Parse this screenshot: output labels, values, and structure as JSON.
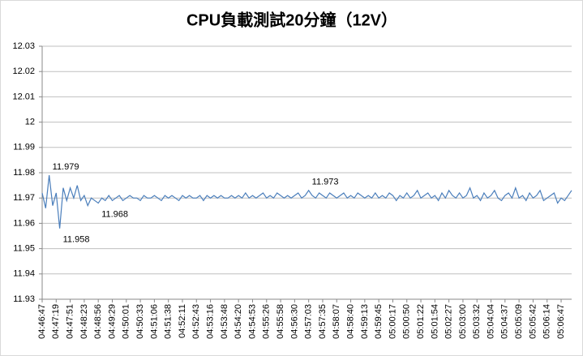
{
  "chart_data": {
    "type": "line",
    "title": "CPU負載測試20分鐘（12V）",
    "categories": [
      "04:46:47",
      null,
      null,
      null,
      "04:47:19",
      null,
      null,
      null,
      "04:47:51",
      null,
      null,
      null,
      "04:48:23",
      null,
      null,
      null,
      "04:48:56",
      null,
      null,
      null,
      "04:49:29",
      null,
      null,
      null,
      "04:50:01",
      null,
      null,
      null,
      "04:50:33",
      null,
      null,
      null,
      "04:51:06",
      null,
      null,
      null,
      "04:51:38",
      null,
      null,
      null,
      "04:52:11",
      null,
      null,
      null,
      "04:52:43",
      null,
      null,
      null,
      "04:53:16",
      null,
      null,
      null,
      "04:53:48",
      null,
      null,
      null,
      "04:54:20",
      null,
      null,
      null,
      "04:54:53",
      null,
      null,
      null,
      "04:55:26",
      null,
      null,
      null,
      "04:55:58",
      null,
      null,
      null,
      "04:56:30",
      null,
      null,
      null,
      "04:57:03",
      null,
      null,
      null,
      "04:57:35",
      null,
      null,
      null,
      "04:58:07",
      null,
      null,
      null,
      "04:58:40",
      null,
      null,
      null,
      "04:59:13",
      null,
      null,
      null,
      "04:59:45",
      null,
      null,
      null,
      "05:00:17",
      null,
      null,
      null,
      "05:00:50",
      null,
      null,
      null,
      "05:01:22",
      null,
      null,
      null,
      "05:01:54",
      null,
      null,
      null,
      "05:02:27",
      null,
      null,
      null,
      "05:03:00",
      null,
      null,
      null,
      "05:03:32",
      null,
      null,
      null,
      "05:04:04",
      null,
      null,
      null,
      "05:04:37",
      null,
      null,
      null,
      "05:05:09",
      null,
      null,
      null,
      "05:05:42",
      null,
      null,
      null,
      "05:06:14",
      null,
      null,
      null,
      "05:06:47",
      null,
      null,
      null
    ],
    "values": [
      11.972,
      11.966,
      11.979,
      11.967,
      11.972,
      11.958,
      11.974,
      11.969,
      11.974,
      11.97,
      11.975,
      11.969,
      11.971,
      11.967,
      11.97,
      11.969,
      11.968,
      11.97,
      11.969,
      11.971,
      11.969,
      11.97,
      11.971,
      11.969,
      11.97,
      11.971,
      11.97,
      11.97,
      11.969,
      11.971,
      11.97,
      11.97,
      11.971,
      11.97,
      11.969,
      11.971,
      11.97,
      11.971,
      11.97,
      11.969,
      11.971,
      11.97,
      11.971,
      11.97,
      11.97,
      11.971,
      11.969,
      11.971,
      11.97,
      11.971,
      11.97,
      11.971,
      11.97,
      11.97,
      11.971,
      11.97,
      11.971,
      11.97,
      11.972,
      11.97,
      11.971,
      11.97,
      11.971,
      11.972,
      11.97,
      11.971,
      11.97,
      11.972,
      11.971,
      11.97,
      11.971,
      11.97,
      11.971,
      11.972,
      11.97,
      11.971,
      11.973,
      11.971,
      11.97,
      11.972,
      11.971,
      11.97,
      11.972,
      11.971,
      11.97,
      11.971,
      11.972,
      11.97,
      11.971,
      11.97,
      11.972,
      11.971,
      11.97,
      11.971,
      11.97,
      11.972,
      11.97,
      11.971,
      11.97,
      11.972,
      11.971,
      11.969,
      11.971,
      11.97,
      11.972,
      11.97,
      11.971,
      11.973,
      11.97,
      11.971,
      11.972,
      11.97,
      11.971,
      11.969,
      11.972,
      11.97,
      11.973,
      11.971,
      11.97,
      11.972,
      11.97,
      11.971,
      11.974,
      11.97,
      11.971,
      11.969,
      11.972,
      11.97,
      11.971,
      11.973,
      11.97,
      11.969,
      11.971,
      11.972,
      11.97,
      11.974,
      11.97,
      11.971,
      11.969,
      11.972,
      11.97,
      11.971,
      11.973,
      11.969,
      11.97,
      11.971,
      11.972,
      11.968,
      11.97,
      11.969,
      11.971,
      11.973
    ],
    "annotations": [
      "11.979",
      "11.958",
      "11.968",
      "11.973"
    ],
    "color": "#4a7ebb",
    "ylim": [
      11.93,
      12.03
    ],
    "yticks": [
      11.93,
      11.94,
      11.95,
      11.96,
      11.97,
      11.98,
      11.99,
      12,
      12.01,
      12.02,
      12.03
    ],
    "grid": true
  }
}
